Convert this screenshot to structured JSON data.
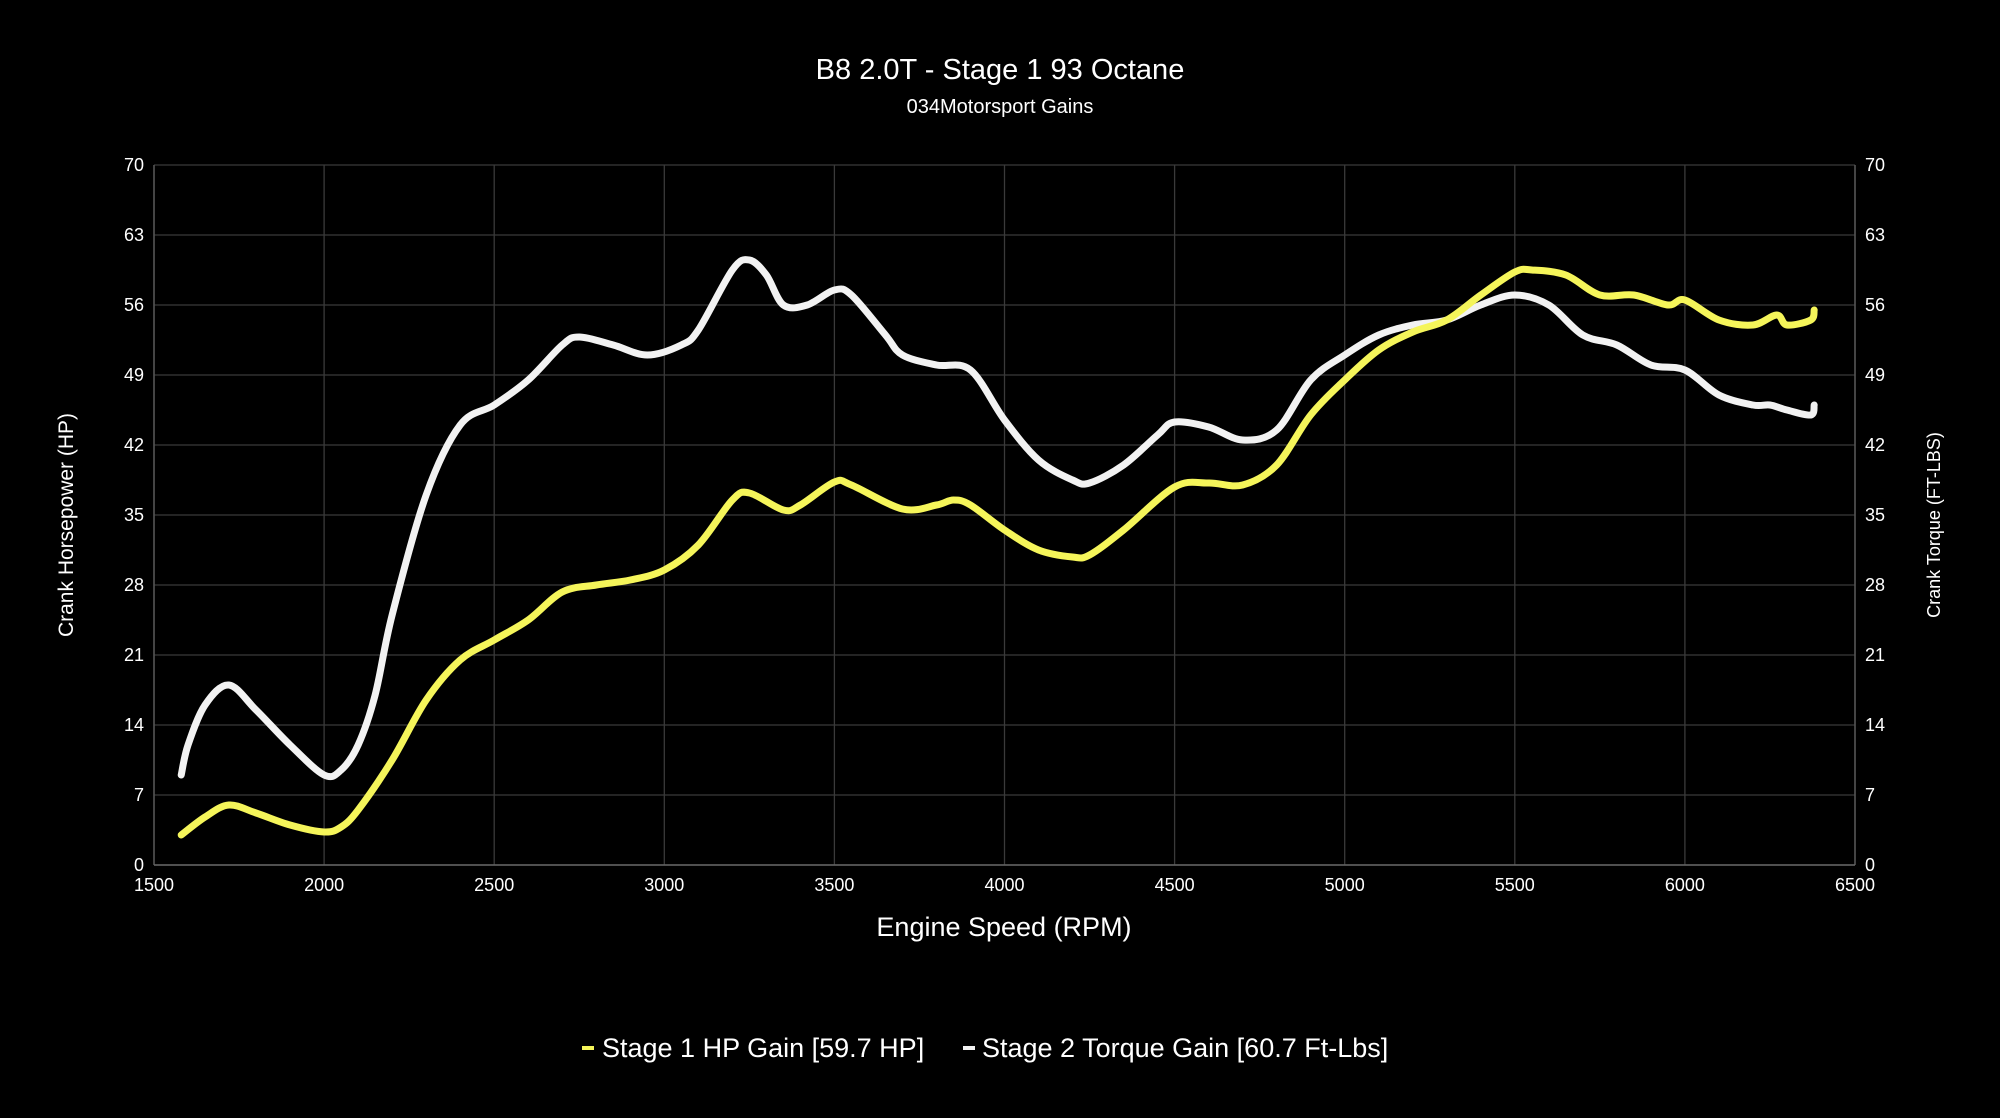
{
  "chart_data": {
    "type": "line",
    "title": "B8 2.0T - Stage 1 93 Octane",
    "subtitle": "034Motorsport Gains",
    "xlabel": "Engine Speed (RPM)",
    "ylabel_left": "Crank Horsepower (HP)",
    "ylabel_right": "Crank Torque (FT-LBS)",
    "xlim": [
      1500,
      6500
    ],
    "ylim": [
      0,
      70
    ],
    "xticks": [
      1500,
      2000,
      2500,
      3000,
      3500,
      4000,
      4500,
      5000,
      5500,
      6000,
      6500
    ],
    "yticks": [
      0,
      7,
      14,
      21,
      28,
      35,
      42,
      49,
      56,
      63,
      70
    ],
    "grid": true,
    "legend_position": "bottom",
    "series": [
      {
        "name": "Stage 1 HP Gain [59.7 HP]",
        "color": "#f5f55a",
        "axis": "left",
        "x": [
          1580,
          1650,
          1720,
          1800,
          1900,
          2000,
          2050,
          2100,
          2200,
          2300,
          2400,
          2500,
          2600,
          2700,
          2800,
          2900,
          3000,
          3100,
          3200,
          3250,
          3350,
          3400,
          3500,
          3550,
          3700,
          3800,
          3850,
          3900,
          4000,
          4100,
          4200,
          4250,
          4350,
          4500,
          4600,
          4700,
          4800,
          4900,
          5000,
          5100,
          5200,
          5300,
          5400,
          5500,
          5550,
          5650,
          5750,
          5850,
          5950,
          6000,
          6100,
          6200,
          6270,
          6300,
          6370,
          6380
        ],
        "y": [
          3,
          4.8,
          6,
          5.2,
          4,
          3.3,
          3.8,
          5.5,
          10.5,
          16.5,
          20.5,
          22.5,
          24.5,
          27.3,
          28,
          28.5,
          29.5,
          32,
          36.5,
          37.2,
          35.5,
          36,
          38.3,
          38,
          35.6,
          36,
          36.5,
          36,
          33.5,
          31.5,
          30.8,
          31,
          33.5,
          37.8,
          38.2,
          38,
          40,
          45,
          48.5,
          51.5,
          53.3,
          54.5,
          57,
          59.3,
          59.5,
          59,
          57,
          57,
          56,
          56.5,
          54.5,
          54,
          55,
          54,
          54.5,
          55.5
        ]
      },
      {
        "name": "Stage 2 Torque Gain [60.7 Ft-Lbs]",
        "color": "#f2f2f2",
        "axis": "right",
        "x": [
          1580,
          1600,
          1650,
          1720,
          1800,
          1900,
          2000,
          2050,
          2100,
          2150,
          2200,
          2300,
          2400,
          2500,
          2600,
          2700,
          2750,
          2850,
          2950,
          3050,
          3100,
          3200,
          3250,
          3300,
          3350,
          3420,
          3500,
          3550,
          3650,
          3700,
          3800,
          3900,
          4000,
          4100,
          4200,
          4250,
          4350,
          4450,
          4500,
          4600,
          4700,
          4800,
          4900,
          5000,
          5100,
          5200,
          5300,
          5400,
          5500,
          5600,
          5700,
          5800,
          5900,
          6000,
          6100,
          6200,
          6250,
          6300,
          6370,
          6380
        ],
        "y": [
          9,
          12,
          16,
          18,
          15.5,
          12,
          9,
          9.5,
          12,
          17,
          25,
          37,
          44,
          46,
          48.5,
          52,
          52.8,
          52,
          51,
          52,
          53.5,
          59.5,
          60.5,
          59,
          56,
          56,
          57.5,
          57,
          53,
          51,
          50,
          49.5,
          44.5,
          40.5,
          38.5,
          38.2,
          40,
          43,
          44.3,
          43.8,
          42.5,
          43.5,
          48.5,
          51,
          53,
          54,
          54.5,
          56,
          57,
          56,
          53,
          52,
          50,
          49.5,
          47,
          46,
          46,
          45.5,
          45,
          46
        ]
      }
    ]
  }
}
